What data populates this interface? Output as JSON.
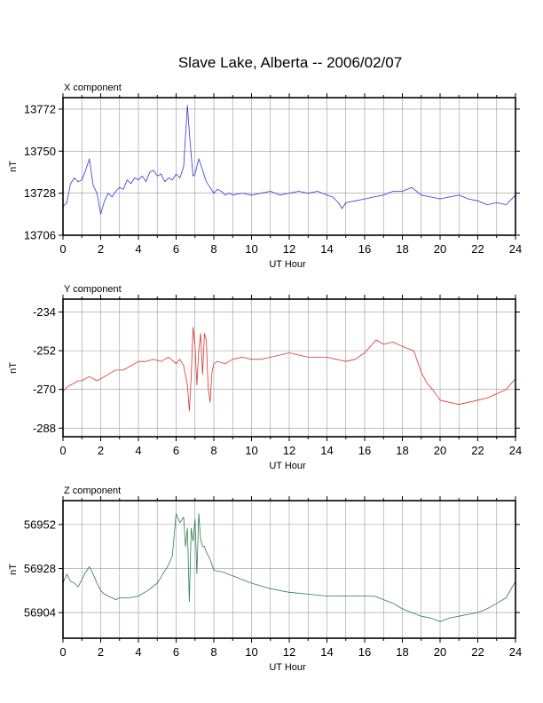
{
  "title": "Slave Lake, Alberta -- 2006/02/07",
  "chart_data": [
    {
      "type": "line",
      "title": "X component",
      "xlabel": "UT Hour",
      "ylabel": "nT",
      "xlim": [
        0,
        24
      ],
      "ylim": [
        13706,
        13778
      ],
      "xticks": [
        0,
        2,
        4,
        6,
        8,
        10,
        12,
        14,
        16,
        18,
        20,
        22,
        24
      ],
      "yticks": [
        13706,
        13728,
        13750,
        13772
      ],
      "grid": true,
      "series": [
        {
          "color": "#3333dd",
          "x": [
            0.0,
            0.2,
            0.4,
            0.6,
            0.8,
            1.0,
            1.2,
            1.4,
            1.6,
            1.8,
            2.0,
            2.2,
            2.4,
            2.6,
            2.8,
            3.0,
            3.2,
            3.4,
            3.6,
            3.8,
            4.0,
            4.2,
            4.4,
            4.6,
            4.8,
            5.0,
            5.2,
            5.4,
            5.6,
            5.8,
            6.0,
            6.2,
            6.4,
            6.6,
            6.7,
            6.8,
            6.9,
            7.0,
            7.2,
            7.4,
            7.6,
            7.8,
            8.0,
            8.2,
            8.4,
            8.6,
            8.8,
            9.0,
            9.5,
            10.0,
            10.5,
            11.0,
            11.5,
            12.0,
            12.5,
            13.0,
            13.5,
            14.0,
            14.3,
            14.6,
            14.8,
            15.0,
            15.5,
            16.0,
            16.5,
            17.0,
            17.5,
            18.0,
            18.5,
            19.0,
            19.5,
            20.0,
            20.5,
            21.0,
            21.5,
            22.0,
            22.5,
            23.0,
            23.5,
            24.0
          ],
          "values": [
            13721,
            13723,
            13733,
            13736,
            13734,
            13735,
            13740,
            13746,
            13732,
            13728,
            13717,
            13724,
            13728,
            13726,
            13729,
            13731,
            13730,
            13735,
            13733,
            13736,
            13735,
            13737,
            13734,
            13739,
            13740,
            13737,
            13738,
            13734,
            13736,
            13735,
            13738,
            13736,
            13742,
            13774,
            13760,
            13748,
            13737,
            13738,
            13746,
            13740,
            13734,
            13731,
            13728,
            13730,
            13729,
            13727,
            13728,
            13727,
            13728,
            13727,
            13728,
            13729,
            13727,
            13728,
            13729,
            13728,
            13729,
            13727,
            13726,
            13723,
            13720,
            13723,
            13724,
            13725,
            13726,
            13727,
            13729,
            13729,
            13731,
            13727,
            13726,
            13725,
            13726,
            13727,
            13725,
            13724,
            13722,
            13723,
            13722,
            13727
          ]
        }
      ]
    },
    {
      "type": "line",
      "title": "Y component",
      "xlabel": "UT Hour",
      "ylabel": "nT",
      "xlim": [
        0,
        24
      ],
      "ylim": [
        -292,
        -228
      ],
      "xticks": [
        0,
        2,
        4,
        6,
        8,
        10,
        12,
        14,
        16,
        18,
        20,
        22,
        24
      ],
      "yticks": [
        -234,
        -252,
        -270,
        -288
      ],
      "grid": true,
      "series": [
        {
          "color": "#dd3333",
          "x": [
            0.0,
            0.2,
            0.4,
            0.6,
            0.8,
            1.0,
            1.4,
            1.8,
            2.0,
            2.4,
            2.8,
            3.2,
            3.6,
            4.0,
            4.4,
            4.8,
            5.2,
            5.6,
            6.0,
            6.2,
            6.4,
            6.6,
            6.7,
            6.8,
            6.9,
            7.0,
            7.1,
            7.2,
            7.3,
            7.4,
            7.5,
            7.6,
            7.7,
            7.8,
            7.9,
            8.0,
            8.2,
            8.6,
            9.0,
            9.5,
            10.0,
            10.5,
            11.0,
            11.5,
            12.0,
            12.5,
            13.0,
            13.5,
            14.0,
            14.5,
            15.0,
            15.5,
            16.0,
            16.3,
            16.6,
            17.0,
            17.5,
            18.0,
            18.3,
            18.6,
            19.0,
            19.3,
            19.6,
            20.0,
            20.5,
            21.0,
            21.5,
            22.0,
            22.5,
            23.0,
            23.5,
            24.0
          ],
          "values": [
            -271,
            -269,
            -268,
            -267,
            -266,
            -266,
            -264,
            -266,
            -265,
            -263,
            -261,
            -261,
            -259,
            -257,
            -257,
            -256,
            -257,
            -255,
            -258,
            -256,
            -259,
            -268,
            -280,
            -264,
            -241,
            -250,
            -268,
            -252,
            -244,
            -263,
            -244,
            -247,
            -269,
            -276,
            -262,
            -258,
            -257,
            -258,
            -256,
            -255,
            -256,
            -256,
            -255,
            -254,
            -253,
            -254,
            -255,
            -255,
            -255,
            -256,
            -257,
            -256,
            -253,
            -250,
            -247,
            -249,
            -248,
            -250,
            -251,
            -252,
            -262,
            -267,
            -270,
            -275,
            -276,
            -277,
            -276,
            -275,
            -274,
            -272,
            -270,
            -265
          ]
        }
      ]
    },
    {
      "type": "line",
      "title": "Z component",
      "xlabel": "UT Hour",
      "ylabel": "nT",
      "xlim": [
        0,
        24
      ],
      "ylim": [
        56890,
        56965
      ],
      "xticks": [
        0,
        2,
        4,
        6,
        8,
        10,
        12,
        14,
        16,
        18,
        20,
        22,
        24
      ],
      "yticks": [
        56904,
        56928,
        56952
      ],
      "grid": true,
      "series": [
        {
          "color": "#2e7d4f",
          "x": [
            0.0,
            0.2,
            0.4,
            0.6,
            0.8,
            1.0,
            1.2,
            1.4,
            1.6,
            1.8,
            2.0,
            2.2,
            2.4,
            2.6,
            2.8,
            3.0,
            3.5,
            4.0,
            4.5,
            5.0,
            5.3,
            5.6,
            5.8,
            6.0,
            6.2,
            6.4,
            6.5,
            6.6,
            6.7,
            6.8,
            6.9,
            7.0,
            7.1,
            7.2,
            7.3,
            7.4,
            7.5,
            7.6,
            7.8,
            8.0,
            8.5,
            9.0,
            9.5,
            10.0,
            11.0,
            12.0,
            13.0,
            14.0,
            15.0,
            16.0,
            16.5,
            17.0,
            17.5,
            18.0,
            18.5,
            19.0,
            19.5,
            20.0,
            20.5,
            21.0,
            21.5,
            22.0,
            22.5,
            23.0,
            23.5,
            24.0
          ],
          "values": [
            56920,
            56925,
            56921,
            56920,
            56918,
            56922,
            56926,
            56929,
            56925,
            56920,
            56916,
            56914,
            56913,
            56912,
            56911,
            56912,
            56912,
            56913,
            56916,
            56920,
            56925,
            56930,
            56935,
            56958,
            56953,
            56956,
            56940,
            56950,
            56910,
            56950,
            56943,
            56955,
            56925,
            56958,
            56944,
            56940,
            56940,
            56937,
            56933,
            56927,
            56926,
            56924,
            56922,
            56920,
            56917,
            56915,
            56914,
            56913,
            56913,
            56913,
            56913,
            56911,
            56909,
            56906,
            56904,
            56902,
            56901,
            56899,
            56901,
            56902,
            56903,
            56904,
            56906,
            56909,
            56912,
            56921
          ]
        }
      ]
    }
  ]
}
